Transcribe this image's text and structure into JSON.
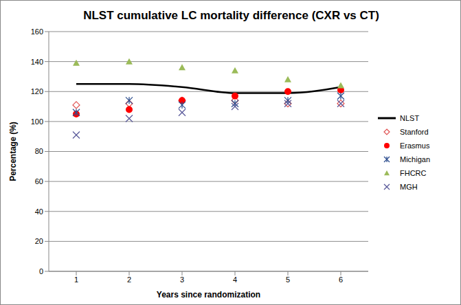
{
  "chart_data": {
    "type": "line",
    "title": "NLST cumulative LC mortality difference (CXR vs CT)",
    "x_label": "Years since randomization",
    "y_label": "Percentage (%)",
    "categories": [
      "1",
      "2",
      "3",
      "4",
      "5",
      "6"
    ],
    "ylim": [
      0,
      160
    ],
    "yticks": [
      0,
      20,
      40,
      60,
      80,
      100,
      120,
      140,
      160
    ],
    "grid": true,
    "legend": "right",
    "series": [
      {
        "name": "NLST",
        "type": "line",
        "line_style": "solid",
        "color": "#000000",
        "values": [
          125,
          125,
          123,
          119,
          119,
          123
        ]
      },
      {
        "name": "Stanford",
        "type": "scatter",
        "marker": "open_diamond",
        "color": "#e05050",
        "values": [
          111,
          112,
          114,
          114,
          112,
          112
        ]
      },
      {
        "name": "Erasmus",
        "type": "scatter",
        "marker": "circle",
        "color": "#ff0000",
        "values": [
          105,
          108,
          114,
          117,
          120,
          121
        ]
      },
      {
        "name": "Michigan",
        "type": "scatter",
        "marker": "star",
        "color": "#2e4f8f",
        "values": [
          106,
          114,
          111,
          112,
          114,
          117
        ]
      },
      {
        "name": "FHCRC",
        "type": "scatter",
        "marker": "triangle",
        "color": "#9bbb59",
        "values": [
          139,
          140,
          136,
          134,
          128,
          124
        ]
      },
      {
        "name": "MGH",
        "type": "scatter",
        "marker": "cross",
        "color": "#5a5a9a",
        "values": [
          91,
          102,
          106,
          110,
          112,
          112
        ]
      }
    ]
  }
}
